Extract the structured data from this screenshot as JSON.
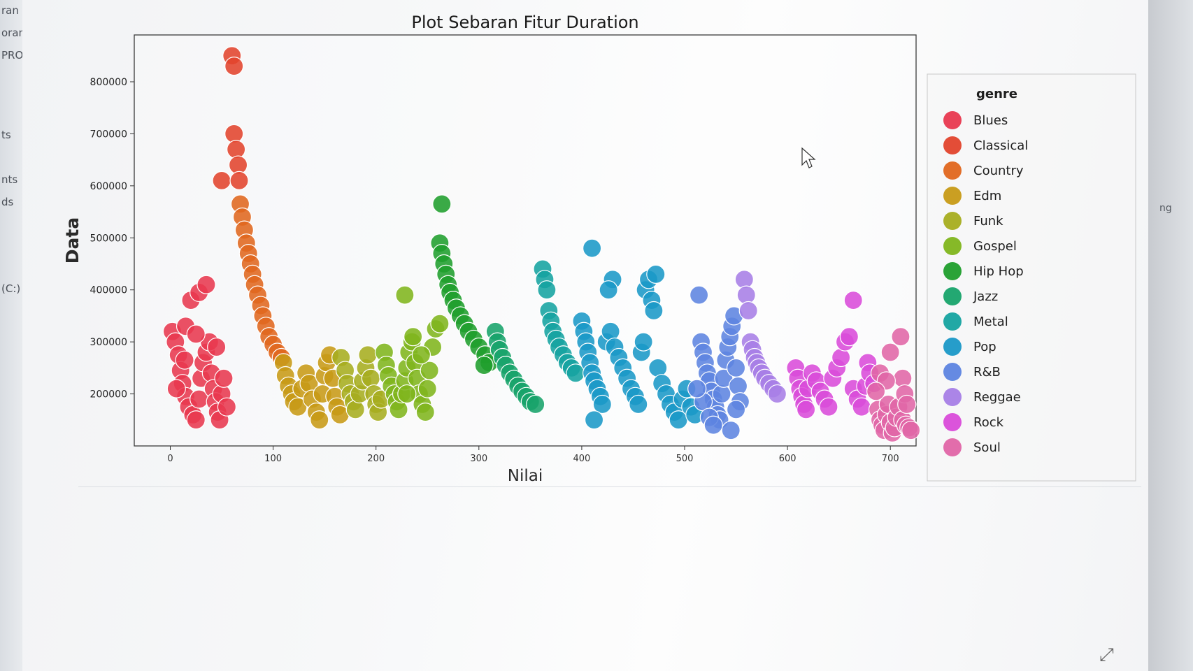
{
  "window": {
    "left_edge_texts": [
      "ran",
      "oran",
      "PRO",
      "ts",
      "nts",
      "ds",
      "(C:)"
    ],
    "right_edge_text": "ng"
  },
  "chart_data": {
    "type": "scatter",
    "title": "Plot Sebaran Fitur Duration",
    "xlabel": "Nilai",
    "ylabel": "Data",
    "xlim": [
      -35,
      725
    ],
    "ylim": [
      100000,
      890000
    ],
    "x_ticks": [
      0,
      100,
      200,
      300,
      400,
      500,
      600,
      700
    ],
    "y_ticks": [
      200000,
      300000,
      400000,
      500000,
      600000,
      700000,
      800000
    ],
    "x_tick_labels": [
      "0",
      "100",
      "200",
      "300",
      "400",
      "500",
      "600",
      "700"
    ],
    "y_tick_labels": [
      "200000",
      "300000",
      "400000",
      "500000",
      "600000",
      "700000",
      "800000"
    ],
    "grid": false,
    "legend": {
      "title": "genre",
      "position": "outside-right"
    },
    "series": [
      {
        "name": "Blues",
        "color": "#e8384f",
        "points": [
          [
            2,
            320000
          ],
          [
            5,
            300000
          ],
          [
            8,
            275000
          ],
          [
            10,
            245000
          ],
          [
            12,
            220000
          ],
          [
            15,
            195000
          ],
          [
            18,
            175000
          ],
          [
            22,
            160000
          ],
          [
            25,
            150000
          ],
          [
            28,
            190000
          ],
          [
            30,
            230000
          ],
          [
            32,
            260000
          ],
          [
            35,
            280000
          ],
          [
            38,
            300000
          ],
          [
            40,
            240000
          ],
          [
            42,
            210000
          ],
          [
            44,
            185000
          ],
          [
            46,
            165000
          ],
          [
            48,
            150000
          ],
          [
            50,
            200000
          ],
          [
            20,
            380000
          ],
          [
            28,
            395000
          ],
          [
            35,
            410000
          ],
          [
            15,
            330000
          ],
          [
            25,
            315000
          ],
          [
            45,
            290000
          ],
          [
            52,
            230000
          ],
          [
            55,
            175000
          ],
          [
            6,
            210000
          ],
          [
            14,
            265000
          ]
        ]
      },
      {
        "name": "Classical",
        "color": "#e2432c",
        "points": [
          [
            50,
            610000
          ],
          [
            60,
            850000
          ],
          [
            62,
            830000
          ],
          [
            62,
            700000
          ],
          [
            64,
            670000
          ],
          [
            66,
            640000
          ],
          [
            67,
            610000
          ]
        ]
      },
      {
        "name": "Country",
        "color": "#e0661e",
        "points": [
          [
            68,
            565000
          ],
          [
            70,
            540000
          ],
          [
            72,
            515000
          ],
          [
            74,
            490000
          ],
          [
            76,
            470000
          ],
          [
            78,
            450000
          ],
          [
            80,
            430000
          ],
          [
            82,
            410000
          ],
          [
            85,
            390000
          ],
          [
            88,
            370000
          ],
          [
            90,
            350000
          ],
          [
            93,
            330000
          ],
          [
            96,
            310000
          ],
          [
            100,
            295000
          ],
          [
            104,
            280000
          ],
          [
            108,
            270000
          ]
        ]
      },
      {
        "name": "Edm",
        "color": "#c79a16",
        "points": [
          [
            110,
            260000
          ],
          [
            112,
            235000
          ],
          [
            115,
            215000
          ],
          [
            118,
            200000
          ],
          [
            120,
            185000
          ],
          [
            124,
            175000
          ],
          [
            128,
            210000
          ],
          [
            132,
            240000
          ],
          [
            135,
            220000
          ],
          [
            138,
            190000
          ],
          [
            142,
            165000
          ],
          [
            145,
            150000
          ],
          [
            148,
            200000
          ],
          [
            150,
            235000
          ],
          [
            152,
            260000
          ],
          [
            155,
            275000
          ],
          [
            158,
            230000
          ],
          [
            160,
            195000
          ],
          [
            162,
            175000
          ],
          [
            165,
            160000
          ]
        ]
      },
      {
        "name": "Funk",
        "color": "#a6ad1f",
        "points": [
          [
            166,
            270000
          ],
          [
            170,
            245000
          ],
          [
            172,
            220000
          ],
          [
            175,
            200000
          ],
          [
            178,
            185000
          ],
          [
            180,
            170000
          ],
          [
            184,
            200000
          ],
          [
            187,
            225000
          ],
          [
            190,
            250000
          ],
          [
            192,
            275000
          ],
          [
            195,
            230000
          ],
          [
            198,
            200000
          ],
          [
            200,
            180000
          ],
          [
            202,
            165000
          ],
          [
            205,
            190000
          ]
        ]
      },
      {
        "name": "Gospel",
        "color": "#7fb51c",
        "points": [
          [
            208,
            280000
          ],
          [
            210,
            255000
          ],
          [
            212,
            235000
          ],
          [
            215,
            215000
          ],
          [
            218,
            200000
          ],
          [
            220,
            185000
          ],
          [
            222,
            170000
          ],
          [
            225,
            200000
          ],
          [
            228,
            225000
          ],
          [
            230,
            250000
          ],
          [
            232,
            280000
          ],
          [
            235,
            300000
          ],
          [
            238,
            260000
          ],
          [
            240,
            230000
          ],
          [
            242,
            200000
          ],
          [
            245,
            180000
          ],
          [
            248,
            165000
          ],
          [
            250,
            210000
          ],
          [
            252,
            245000
          ],
          [
            255,
            290000
          ],
          [
            258,
            325000
          ],
          [
            262,
            335000
          ],
          [
            228,
            390000
          ],
          [
            236,
            310000
          ],
          [
            244,
            275000
          ],
          [
            230,
            200000
          ]
        ]
      },
      {
        "name": "Hip Hop",
        "color": "#1f9e2c",
        "points": [
          [
            264,
            565000
          ],
          [
            262,
            490000
          ],
          [
            264,
            470000
          ],
          [
            266,
            450000
          ],
          [
            268,
            430000
          ],
          [
            270,
            410000
          ],
          [
            272,
            395000
          ],
          [
            275,
            380000
          ],
          [
            278,
            365000
          ],
          [
            282,
            350000
          ],
          [
            286,
            335000
          ],
          [
            290,
            320000
          ],
          [
            295,
            305000
          ],
          [
            300,
            290000
          ],
          [
            306,
            275000
          ],
          [
            310,
            260000
          ],
          [
            305,
            255000
          ]
        ]
      },
      {
        "name": "Jazz",
        "color": "#17a36a",
        "points": [
          [
            316,
            320000
          ],
          [
            318,
            300000
          ],
          [
            320,
            285000
          ],
          [
            323,
            270000
          ],
          [
            326,
            255000
          ],
          [
            330,
            240000
          ],
          [
            334,
            228000
          ],
          [
            338,
            215000
          ],
          [
            342,
            205000
          ],
          [
            346,
            195000
          ],
          [
            350,
            185000
          ],
          [
            355,
            180000
          ]
        ]
      },
      {
        "name": "Metal",
        "color": "#15a3a0",
        "points": [
          [
            362,
            440000
          ],
          [
            364,
            420000
          ],
          [
            366,
            400000
          ],
          [
            368,
            360000
          ],
          [
            370,
            340000
          ],
          [
            372,
            320000
          ],
          [
            375,
            305000
          ],
          [
            378,
            290000
          ],
          [
            382,
            275000
          ],
          [
            386,
            260000
          ],
          [
            390,
            250000
          ],
          [
            394,
            240000
          ]
        ]
      },
      {
        "name": "Pop",
        "color": "#1a98c7",
        "points": [
          [
            410,
            480000
          ],
          [
            400,
            340000
          ],
          [
            402,
            320000
          ],
          [
            404,
            300000
          ],
          [
            406,
            280000
          ],
          [
            408,
            260000
          ],
          [
            410,
            240000
          ],
          [
            412,
            225000
          ],
          [
            415,
            210000
          ],
          [
            418,
            195000
          ],
          [
            420,
            180000
          ],
          [
            424,
            300000
          ],
          [
            428,
            320000
          ],
          [
            432,
            290000
          ],
          [
            436,
            270000
          ],
          [
            440,
            250000
          ],
          [
            444,
            230000
          ],
          [
            448,
            210000
          ],
          [
            452,
            195000
          ],
          [
            455,
            180000
          ],
          [
            458,
            280000
          ],
          [
            460,
            300000
          ],
          [
            462,
            400000
          ],
          [
            465,
            420000
          ],
          [
            468,
            380000
          ],
          [
            470,
            360000
          ],
          [
            472,
            430000
          ],
          [
            430,
            420000
          ],
          [
            426,
            400000
          ],
          [
            474,
            250000
          ],
          [
            478,
            220000
          ],
          [
            482,
            200000
          ],
          [
            486,
            180000
          ],
          [
            490,
            165000
          ],
          [
            494,
            150000
          ],
          [
            498,
            190000
          ],
          [
            502,
            210000
          ],
          [
            506,
            175000
          ],
          [
            510,
            160000
          ],
          [
            412,
            150000
          ]
        ]
      },
      {
        "name": "R&B",
        "color": "#5d84e0",
        "points": [
          [
            514,
            390000
          ],
          [
            516,
            300000
          ],
          [
            518,
            280000
          ],
          [
            520,
            260000
          ],
          [
            522,
            240000
          ],
          [
            524,
            225000
          ],
          [
            526,
            205000
          ],
          [
            528,
            190000
          ],
          [
            530,
            175000
          ],
          [
            532,
            160000
          ],
          [
            534,
            150000
          ],
          [
            536,
            200000
          ],
          [
            538,
            230000
          ],
          [
            540,
            265000
          ],
          [
            542,
            290000
          ],
          [
            544,
            310000
          ],
          [
            546,
            330000
          ],
          [
            548,
            350000
          ],
          [
            550,
            250000
          ],
          [
            552,
            215000
          ],
          [
            554,
            185000
          ],
          [
            545,
            130000
          ],
          [
            518,
            185000
          ],
          [
            524,
            155000
          ],
          [
            528,
            140000
          ],
          [
            512,
            210000
          ],
          [
            550,
            170000
          ]
        ]
      },
      {
        "name": "Reggae",
        "color": "#a77ee6",
        "points": [
          [
            558,
            420000
          ],
          [
            560,
            390000
          ],
          [
            562,
            360000
          ],
          [
            564,
            300000
          ],
          [
            566,
            285000
          ],
          [
            568,
            270000
          ],
          [
            570,
            260000
          ],
          [
            572,
            250000
          ],
          [
            575,
            240000
          ],
          [
            578,
            230000
          ],
          [
            582,
            220000
          ],
          [
            586,
            210000
          ],
          [
            590,
            200000
          ]
        ]
      },
      {
        "name": "Rock",
        "color": "#d94bd9",
        "points": [
          [
            608,
            250000
          ],
          [
            610,
            230000
          ],
          [
            612,
            210000
          ],
          [
            614,
            195000
          ],
          [
            616,
            180000
          ],
          [
            618,
            170000
          ],
          [
            620,
            210000
          ],
          [
            624,
            240000
          ],
          [
            628,
            225000
          ],
          [
            632,
            205000
          ],
          [
            636,
            190000
          ],
          [
            640,
            175000
          ],
          [
            644,
            230000
          ],
          [
            648,
            250000
          ],
          [
            652,
            270000
          ],
          [
            656,
            300000
          ],
          [
            660,
            310000
          ],
          [
            664,
            210000
          ],
          [
            668,
            190000
          ],
          [
            672,
            175000
          ],
          [
            676,
            215000
          ],
          [
            678,
            260000
          ],
          [
            664,
            380000
          ],
          [
            680,
            240000
          ],
          [
            684,
            220000
          ]
        ]
      },
      {
        "name": "Soul",
        "color": "#e065a6",
        "points": [
          [
            688,
            170000
          ],
          [
            690,
            150000
          ],
          [
            692,
            140000
          ],
          [
            694,
            130000
          ],
          [
            696,
            160000
          ],
          [
            698,
            180000
          ],
          [
            700,
            145000
          ],
          [
            702,
            125000
          ],
          [
            704,
            135000
          ],
          [
            706,
            155000
          ],
          [
            708,
            175000
          ],
          [
            712,
            150000
          ],
          [
            715,
            140000
          ],
          [
            718,
            135000
          ],
          [
            720,
            130000
          ],
          [
            700,
            280000
          ],
          [
            710,
            310000
          ],
          [
            712,
            230000
          ],
          [
            714,
            200000
          ],
          [
            716,
            180000
          ],
          [
            690,
            240000
          ],
          [
            696,
            225000
          ],
          [
            686,
            205000
          ]
        ]
      }
    ]
  }
}
